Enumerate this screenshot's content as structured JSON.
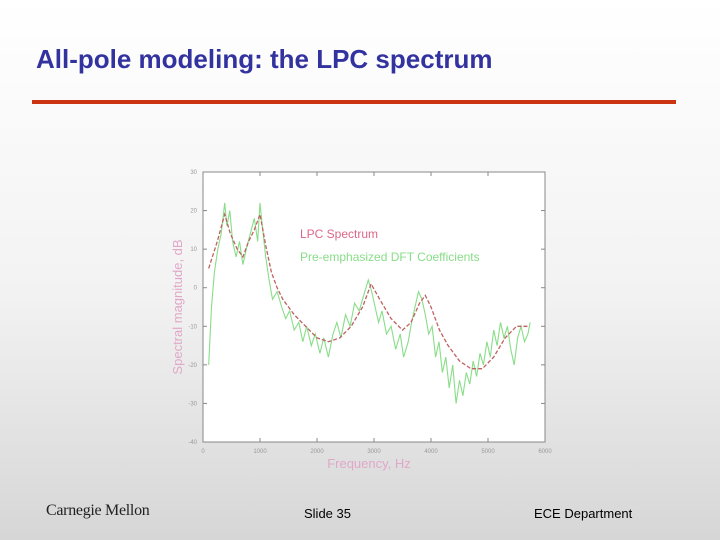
{
  "slide": {
    "title": "All-pole modeling: the LPC spectrum",
    "logo_text": "Carnegie Mellon",
    "slide_number": "Slide 35",
    "department": "ECE Department",
    "title_color": "#3333a0",
    "rule_color": "#cc3311"
  },
  "chart_data": {
    "type": "line",
    "title": "",
    "xlabel": "Frequency, Hz",
    "ylabel": "Spectral magnitude, dB",
    "xlim": [
      0,
      6000
    ],
    "ylim": [
      -40,
      30
    ],
    "xticks": [
      0,
      1000,
      2000,
      3000,
      4000,
      5000,
      6000
    ],
    "yticks": [
      30,
      20,
      10,
      0,
      -10,
      -20,
      -30,
      -40
    ],
    "grid": false,
    "legend_position": "top-right",
    "series": [
      {
        "name": "LPC Spectrum",
        "color": "#c06060",
        "dash": "4,2",
        "points": [
          [
            100,
            5
          ],
          [
            250,
            12
          ],
          [
            380,
            19
          ],
          [
            480,
            14
          ],
          [
            600,
            10
          ],
          [
            700,
            8
          ],
          [
            800,
            12
          ],
          [
            900,
            15
          ],
          [
            1000,
            19
          ],
          [
            1100,
            11
          ],
          [
            1200,
            4
          ],
          [
            1300,
            0
          ],
          [
            1400,
            -3
          ],
          [
            1600,
            -7
          ],
          [
            1800,
            -10
          ],
          [
            2000,
            -13
          ],
          [
            2200,
            -14
          ],
          [
            2400,
            -13
          ],
          [
            2600,
            -10
          ],
          [
            2800,
            -5
          ],
          [
            2950,
            1
          ],
          [
            3100,
            -3
          ],
          [
            3300,
            -8
          ],
          [
            3500,
            -11
          ],
          [
            3650,
            -9
          ],
          [
            3800,
            -4
          ],
          [
            3900,
            -2
          ],
          [
            4000,
            -5
          ],
          [
            4150,
            -11
          ],
          [
            4300,
            -15
          ],
          [
            4500,
            -19
          ],
          [
            4700,
            -21
          ],
          [
            4900,
            -21
          ],
          [
            5100,
            -18
          ],
          [
            5300,
            -13
          ],
          [
            5500,
            -10
          ],
          [
            5700,
            -10
          ]
        ]
      },
      {
        "name": "Pre-emphasized DFT Coefficients",
        "color": "#88dd88",
        "dash": "",
        "points": [
          [
            100,
            -20
          ],
          [
            150,
            -5
          ],
          [
            200,
            4
          ],
          [
            260,
            10
          ],
          [
            320,
            14
          ],
          [
            380,
            22
          ],
          [
            420,
            16
          ],
          [
            470,
            20
          ],
          [
            520,
            12
          ],
          [
            580,
            8
          ],
          [
            640,
            12
          ],
          [
            700,
            6
          ],
          [
            760,
            10
          ],
          [
            830,
            14
          ],
          [
            900,
            18
          ],
          [
            960,
            12
          ],
          [
            1000,
            22
          ],
          [
            1040,
            16
          ],
          [
            1100,
            8
          ],
          [
            1160,
            2
          ],
          [
            1220,
            -3
          ],
          [
            1300,
            -1
          ],
          [
            1380,
            -5
          ],
          [
            1450,
            -8
          ],
          [
            1520,
            -6
          ],
          [
            1600,
            -11
          ],
          [
            1680,
            -9
          ],
          [
            1750,
            -14
          ],
          [
            1820,
            -10
          ],
          [
            1900,
            -15
          ],
          [
            1970,
            -12
          ],
          [
            2050,
            -17
          ],
          [
            2120,
            -13
          ],
          [
            2200,
            -18
          ],
          [
            2280,
            -12
          ],
          [
            2350,
            -9
          ],
          [
            2420,
            -13
          ],
          [
            2500,
            -7
          ],
          [
            2580,
            -10
          ],
          [
            2660,
            -4
          ],
          [
            2740,
            -6
          ],
          [
            2820,
            -2
          ],
          [
            2900,
            2
          ],
          [
            2960,
            -1
          ],
          [
            3020,
            -5
          ],
          [
            3080,
            -9
          ],
          [
            3140,
            -6
          ],
          [
            3220,
            -12
          ],
          [
            3300,
            -10
          ],
          [
            3380,
            -16
          ],
          [
            3460,
            -12
          ],
          [
            3520,
            -18
          ],
          [
            3600,
            -14
          ],
          [
            3660,
            -9
          ],
          [
            3720,
            -5
          ],
          [
            3780,
            -1
          ],
          [
            3840,
            -3
          ],
          [
            3900,
            -7
          ],
          [
            3960,
            -12
          ],
          [
            4020,
            -10
          ],
          [
            4080,
            -18
          ],
          [
            4140,
            -14
          ],
          [
            4200,
            -22
          ],
          [
            4260,
            -18
          ],
          [
            4320,
            -26
          ],
          [
            4380,
            -20
          ],
          [
            4440,
            -30
          ],
          [
            4500,
            -24
          ],
          [
            4560,
            -28
          ],
          [
            4620,
            -22
          ],
          [
            4680,
            -25
          ],
          [
            4740,
            -19
          ],
          [
            4800,
            -23
          ],
          [
            4860,
            -17
          ],
          [
            4920,
            -20
          ],
          [
            4980,
            -14
          ],
          [
            5040,
            -18
          ],
          [
            5100,
            -11
          ],
          [
            5160,
            -15
          ],
          [
            5220,
            -9
          ],
          [
            5280,
            -13
          ],
          [
            5340,
            -10
          ],
          [
            5400,
            -16
          ],
          [
            5460,
            -20
          ],
          [
            5520,
            -13
          ],
          [
            5580,
            -10
          ],
          [
            5640,
            -14
          ],
          [
            5700,
            -12
          ],
          [
            5740,
            -9
          ]
        ]
      }
    ]
  }
}
